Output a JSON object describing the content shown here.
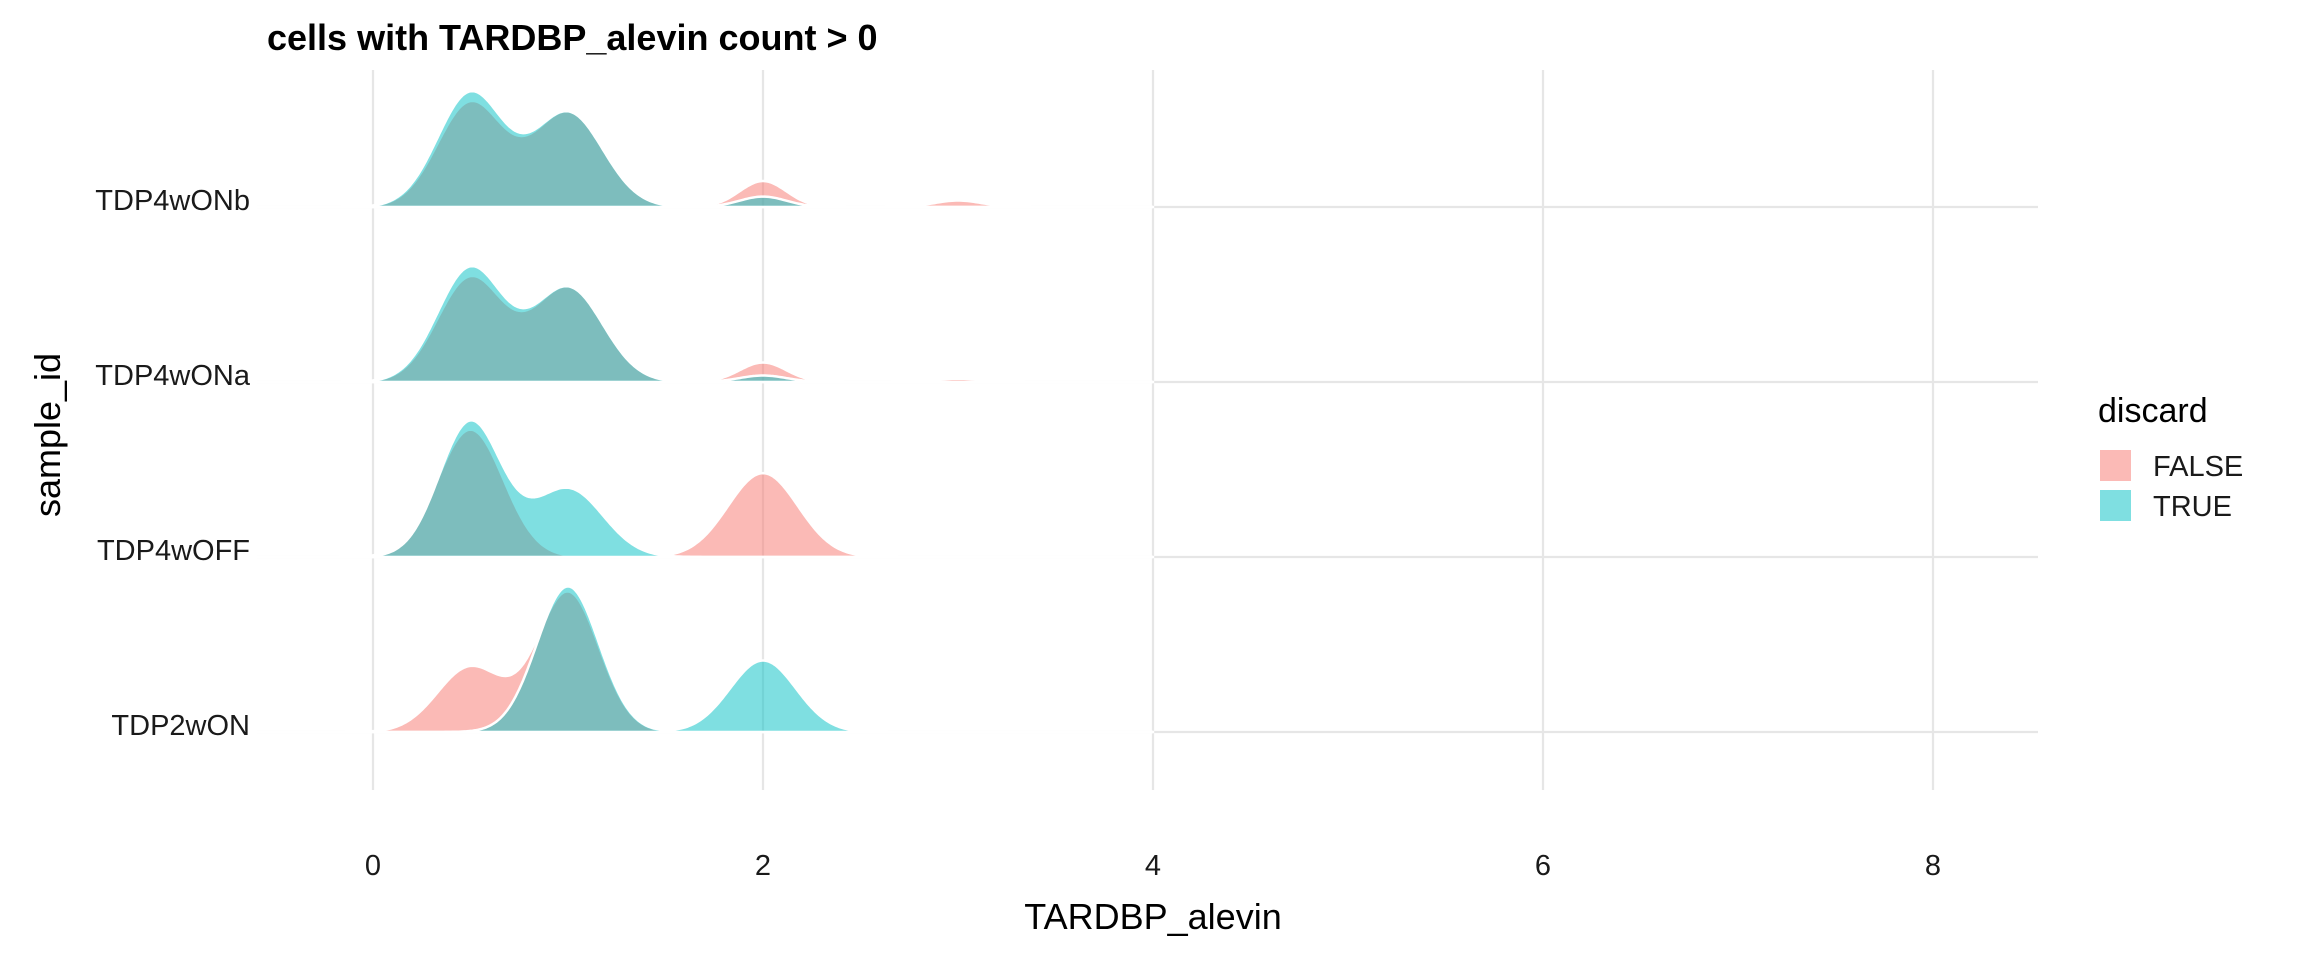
{
  "chart_data": {
    "type": "ridgeline",
    "title": "cells with TARDBP_alevin count > 0",
    "xlabel": "TARDBP_alevin",
    "ylabel": "sample_id",
    "xlim": [
      -0.6,
      8.55
    ],
    "x_ticks": [
      0,
      2,
      4,
      6,
      8
    ],
    "grid": true,
    "legend": {
      "title": "discard",
      "position": "right",
      "entries": [
        {
          "label": "FALSE",
          "color": "#F8766D"
        },
        {
          "label": "TRUE",
          "color": "#00BFC4"
        }
      ]
    },
    "categories": [
      "TDP4wONb",
      "TDP4wONa",
      "TDP4wOFF",
      "TDP2wON"
    ],
    "groups": [
      {
        "sample": "TDP4wONb",
        "series": [
          {
            "name": "FALSE",
            "peaks": [
              [
                0.5,
                0.16,
                0.17
              ],
              [
                1.0,
                0.145,
                0.18
              ],
              [
                2.0,
                0.04,
                0.12
              ],
              [
                3.0,
                0.01,
                0.12
              ]
            ]
          },
          {
            "name": "TRUE",
            "peaks": [
              [
                0.5,
                0.175,
                0.17
              ],
              [
                1.0,
                0.145,
                0.18
              ],
              [
                2.0,
                0.016,
                0.12
              ]
            ]
          }
        ]
      },
      {
        "sample": "TDP4wONa",
        "series": [
          {
            "name": "FALSE",
            "peaks": [
              [
                0.5,
                0.16,
                0.17
              ],
              [
                1.0,
                0.145,
                0.18
              ],
              [
                2.0,
                0.03,
                0.12
              ],
              [
                3.0,
                0.005,
                0.12
              ]
            ]
          },
          {
            "name": "TRUE",
            "peaks": [
              [
                0.5,
                0.175,
                0.17
              ],
              [
                1.0,
                0.145,
                0.18
              ],
              [
                2.0,
                0.01,
                0.12
              ]
            ]
          }
        ]
      },
      {
        "sample": "TDP4wOFF",
        "series": [
          {
            "name": "FALSE",
            "peaks": [
              [
                0.5,
                0.196,
                0.17
              ],
              [
                2.0,
                0.129,
                0.18
              ]
            ]
          },
          {
            "name": "TRUE",
            "peaks": [
              [
                0.5,
                0.208,
                0.16
              ],
              [
                1.0,
                0.105,
                0.18
              ]
            ]
          }
        ]
      },
      {
        "sample": "TDP2wON",
        "series": [
          {
            "name": "FALSE",
            "peaks": [
              [
                0.5,
                0.1,
                0.17
              ],
              [
                1.0,
                0.215,
                0.16
              ]
            ]
          },
          {
            "name": "TRUE",
            "peaks": [
              [
                1.0,
                0.224,
                0.16
              ],
              [
                2.0,
                0.11,
                0.17
              ]
            ]
          }
        ]
      }
    ]
  }
}
